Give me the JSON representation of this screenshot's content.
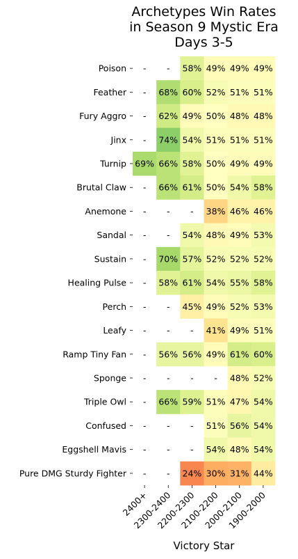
{
  "chart_data": {
    "type": "heatmap",
    "title": [
      "Archetypes Win Rates",
      "in Season 9 Mystic Era",
      "Days 3-5"
    ],
    "xlabel": "Victory Star",
    "ylabel": "",
    "columns": [
      "2400+",
      "2300-2400",
      "2200-2300",
      "2100-2200",
      "2000-2100",
      "1900-2000"
    ],
    "rows": [
      "Poison",
      "Feather",
      "Fury Aggro",
      "Jinx",
      "Turnip",
      "Brutal Claw",
      "Anemone",
      "Sandal",
      "Sustain",
      "Healing Pulse",
      "Perch",
      "Leafy",
      "Ramp Tiny Fan",
      "Sponge",
      "Triple Owl",
      "Confused",
      "Eggshell Mavis",
      "Pure DMG Sturdy Fighter"
    ],
    "values": [
      [
        null,
        null,
        58,
        49,
        49,
        49
      ],
      [
        null,
        68,
        60,
        52,
        51,
        51
      ],
      [
        null,
        62,
        49,
        50,
        48,
        48
      ],
      [
        null,
        74,
        54,
        51,
        51,
        51
      ],
      [
        69,
        66,
        58,
        50,
        49,
        49
      ],
      [
        null,
        66,
        61,
        50,
        54,
        58
      ],
      [
        null,
        null,
        null,
        38,
        46,
        46
      ],
      [
        null,
        null,
        54,
        48,
        49,
        53
      ],
      [
        null,
        70,
        57,
        52,
        52,
        52
      ],
      [
        null,
        58,
        61,
        54,
        55,
        58
      ],
      [
        null,
        null,
        45,
        49,
        52,
        53
      ],
      [
        null,
        null,
        null,
        41,
        49,
        51
      ],
      [
        null,
        56,
        56,
        49,
        61,
        60
      ],
      [
        null,
        null,
        null,
        null,
        48,
        52
      ],
      [
        null,
        66,
        59,
        51,
        47,
        54
      ],
      [
        null,
        null,
        null,
        51,
        56,
        54
      ],
      [
        null,
        null,
        null,
        54,
        48,
        54
      ],
      [
        null,
        null,
        24,
        30,
        31,
        44
      ]
    ],
    "missing_label": "-",
    "value_suffix": "%",
    "colormap": "RdYlGn",
    "color_range": [
      0,
      100
    ]
  }
}
